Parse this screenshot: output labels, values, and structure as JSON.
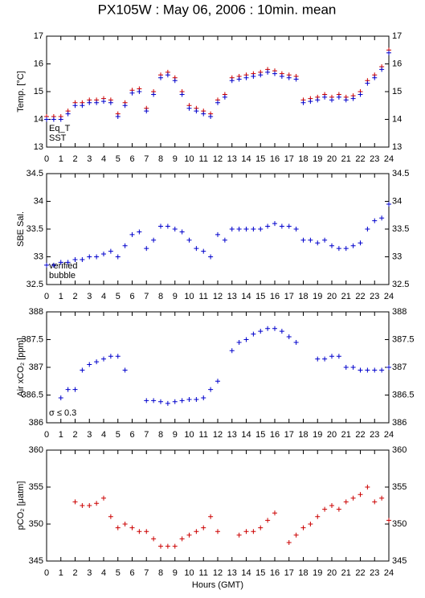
{
  "title": "PX105W : May 06, 2006 : 10min. mean",
  "chart_data": [
    {
      "type": "scatter",
      "ylabel": "Temp. [°C]",
      "xlim": [
        0,
        24
      ],
      "ylim": [
        13,
        17
      ],
      "xticks": [
        0,
        1,
        2,
        3,
        4,
        5,
        6,
        7,
        8,
        9,
        10,
        11,
        12,
        13,
        14,
        15,
        16,
        17,
        18,
        19,
        20,
        21,
        22,
        23,
        24
      ],
      "yticks": [
        13,
        14,
        15,
        16,
        17
      ],
      "x": [
        0,
        0.5,
        1,
        1.5,
        2,
        2.5,
        3,
        3.5,
        4,
        4.5,
        5,
        5.5,
        6,
        6.5,
        7,
        7.5,
        8,
        8.5,
        9,
        9.5,
        10,
        10.5,
        11,
        11.5,
        12,
        12.5,
        13,
        13.5,
        14,
        14.5,
        15,
        15.5,
        16,
        16.5,
        17,
        17.5,
        18,
        18.5,
        19,
        19.5,
        20,
        20.5,
        21,
        21.5,
        22,
        22.5,
        23,
        23.5,
        24
      ],
      "series": [
        {
          "name": "Eq_T",
          "color": "#cc0000",
          "values": [
            14.1,
            14.1,
            14.1,
            14.3,
            14.6,
            14.6,
            14.7,
            14.7,
            14.75,
            14.7,
            14.2,
            14.6,
            15.05,
            15.1,
            14.4,
            15.0,
            15.6,
            15.7,
            15.5,
            15.0,
            14.5,
            14.4,
            14.3,
            14.2,
            14.7,
            14.9,
            15.5,
            15.55,
            15.6,
            15.65,
            15.7,
            15.8,
            15.75,
            15.65,
            15.6,
            15.55,
            14.7,
            14.75,
            14.8,
            14.9,
            14.8,
            14.9,
            14.8,
            14.85,
            15.0,
            15.4,
            15.6,
            15.9,
            16.5
          ]
        },
        {
          "name": "SST",
          "color": "#0000cc",
          "values": [
            14.0,
            14.0,
            14.0,
            14.2,
            14.5,
            14.5,
            14.6,
            14.6,
            14.65,
            14.6,
            14.1,
            14.5,
            14.95,
            15.0,
            14.3,
            14.9,
            15.5,
            15.6,
            15.4,
            14.9,
            14.4,
            14.3,
            14.2,
            14.1,
            14.6,
            14.8,
            15.4,
            15.45,
            15.5,
            15.55,
            15.6,
            15.7,
            15.65,
            15.55,
            15.5,
            15.45,
            14.6,
            14.65,
            14.7,
            14.8,
            14.7,
            14.8,
            14.7,
            14.75,
            14.9,
            15.3,
            15.5,
            15.8,
            16.4
          ]
        }
      ]
    },
    {
      "type": "scatter",
      "ylabel": "SBE Sal.",
      "xlim": [
        0,
        24
      ],
      "ylim": [
        32.5,
        34.5
      ],
      "xticks": [
        0,
        1,
        2,
        3,
        4,
        5,
        6,
        7,
        8,
        9,
        10,
        11,
        12,
        13,
        14,
        15,
        16,
        17,
        18,
        19,
        20,
        21,
        22,
        23,
        24
      ],
      "yticks": [
        32.5,
        33,
        33.5,
        34,
        34.5
      ],
      "x": [
        0,
        0.5,
        1,
        1.5,
        2,
        2.5,
        3,
        3.5,
        4,
        4.5,
        5,
        5.5,
        6,
        6.5,
        7,
        7.5,
        8,
        8.5,
        9,
        9.5,
        10,
        10.5,
        11,
        11.5,
        12,
        12.5,
        13,
        13.5,
        14,
        14.5,
        15,
        15.5,
        16,
        16.5,
        17,
        17.5,
        18,
        18.5,
        19,
        19.5,
        20,
        20.5,
        21,
        21.5,
        22,
        22.5,
        23,
        23.5,
        24
      ],
      "series": [
        {
          "name": "verified",
          "color": "#0000cc",
          "values": [
            32.85,
            32.85,
            32.9,
            32.9,
            32.95,
            32.95,
            33.0,
            33.0,
            33.05,
            33.1,
            33.0,
            33.2,
            33.4,
            33.45,
            33.15,
            33.3,
            33.55,
            33.55,
            33.5,
            33.45,
            33.3,
            33.15,
            33.1,
            33.0,
            33.4,
            33.3,
            33.5,
            33.5,
            33.5,
            33.5,
            33.5,
            33.55,
            33.6,
            33.55,
            33.55,
            33.5,
            33.3,
            33.3,
            33.25,
            33.3,
            33.2,
            33.15,
            33.15,
            33.2,
            33.25,
            33.5,
            33.65,
            33.7,
            33.95
          ]
        },
        {
          "name": "bubble",
          "color": "#cc00cc",
          "values": [
            null,
            null,
            null,
            null,
            null,
            null,
            null,
            null,
            null,
            null,
            null,
            null,
            null,
            null,
            null,
            null,
            null,
            null,
            null,
            null,
            null,
            null,
            null,
            null,
            null,
            null,
            null,
            null,
            null,
            null,
            null,
            null,
            null,
            null,
            null,
            null,
            null,
            null,
            null,
            null,
            null,
            null,
            null,
            null,
            null,
            null,
            null,
            null,
            null
          ]
        }
      ]
    },
    {
      "type": "scatter",
      "ylabel": "Air xCO₂ [ppm]",
      "annotation": "σ ≤ 0.3",
      "annotation_color": "#cc00cc",
      "xlim": [
        0,
        24
      ],
      "ylim": [
        386,
        388
      ],
      "xticks": [
        0,
        1,
        2,
        3,
        4,
        5,
        6,
        7,
        8,
        9,
        10,
        11,
        12,
        13,
        14,
        15,
        16,
        17,
        18,
        19,
        20,
        21,
        22,
        23,
        24
      ],
      "yticks": [
        386,
        386.5,
        387,
        387.5,
        388
      ],
      "x": [
        0,
        0.5,
        1,
        1.5,
        2,
        2.5,
        3,
        3.5,
        4,
        4.5,
        5,
        5.5,
        6,
        6.5,
        7,
        7.5,
        8,
        8.5,
        9,
        9.5,
        10,
        10.5,
        11,
        11.5,
        12,
        12.5,
        13,
        13.5,
        14,
        14.5,
        15,
        15.5,
        16,
        16.5,
        17,
        17.5,
        18,
        18.5,
        19,
        19.5,
        20,
        20.5,
        21,
        21.5,
        22,
        22.5,
        23,
        23.5,
        24
      ],
      "series": [
        {
          "color": "#0000cc",
          "values": [
            null,
            null,
            386.45,
            386.6,
            386.6,
            386.95,
            387.05,
            387.1,
            387.15,
            387.2,
            387.2,
            386.95,
            null,
            null,
            386.4,
            386.4,
            386.38,
            386.35,
            386.38,
            386.4,
            386.42,
            386.42,
            386.45,
            386.6,
            386.75,
            null,
            387.3,
            387.45,
            387.5,
            387.6,
            387.65,
            387.7,
            387.7,
            387.65,
            387.55,
            387.45,
            null,
            null,
            387.15,
            387.15,
            387.2,
            387.2,
            387.0,
            387.0,
            386.95,
            386.95,
            386.95,
            386.95,
            387.0
          ]
        }
      ]
    },
    {
      "type": "scatter",
      "ylabel": "pCO₂ [μatm]",
      "xlabel": "Hours (GMT)",
      "xlim": [
        0,
        24
      ],
      "ylim": [
        345,
        360
      ],
      "xticks": [
        0,
        1,
        2,
        3,
        4,
        5,
        6,
        7,
        8,
        9,
        10,
        11,
        12,
        13,
        14,
        15,
        16,
        17,
        18,
        19,
        20,
        21,
        22,
        23,
        24
      ],
      "yticks": [
        345,
        350,
        355,
        360
      ],
      "x": [
        0,
        0.5,
        1,
        1.5,
        2,
        2.5,
        3,
        3.5,
        4,
        4.5,
        5,
        5.5,
        6,
        6.5,
        7,
        7.5,
        8,
        8.5,
        9,
        9.5,
        10,
        10.5,
        11,
        11.5,
        12,
        12.5,
        13,
        13.5,
        14,
        14.5,
        15,
        15.5,
        16,
        16.5,
        17,
        17.5,
        18,
        18.5,
        19,
        19.5,
        20,
        20.5,
        21,
        21.5,
        22,
        22.5,
        23,
        23.5,
        24
      ],
      "series": [
        {
          "color": "#cc0000",
          "values": [
            null,
            null,
            null,
            null,
            353.0,
            352.5,
            352.5,
            352.8,
            353.5,
            351,
            349.5,
            350,
            349.5,
            349,
            349,
            348,
            347,
            347,
            347,
            348,
            348.5,
            349,
            349.5,
            351,
            349,
            null,
            null,
            348.5,
            349,
            349,
            349.5,
            350.5,
            351.5,
            null,
            347.5,
            348.5,
            349.5,
            350,
            351,
            352,
            352.5,
            352,
            353,
            353.5,
            354,
            355,
            353,
            353.5,
            350.5
          ]
        }
      ]
    }
  ]
}
